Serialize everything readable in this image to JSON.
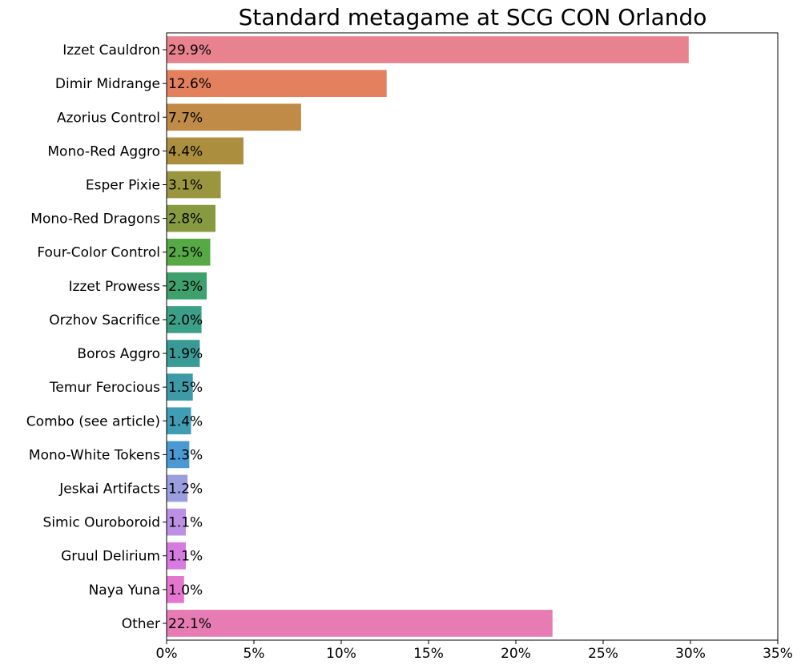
{
  "chart_data": {
    "type": "bar",
    "orientation": "horizontal",
    "title": "Standard metagame at SCG CON Orlando",
    "xlabel": "",
    "ylabel": "",
    "xlim": [
      0,
      35
    ],
    "xticks": [
      0,
      5,
      10,
      15,
      20,
      25,
      30,
      35
    ],
    "xtick_labels": [
      "0%",
      "5%",
      "10%",
      "15%",
      "20%",
      "25%",
      "30%",
      "35%"
    ],
    "grid": false,
    "legend": "none",
    "categories": [
      "Izzet Cauldron",
      "Dimir Midrange",
      "Azorius Control",
      "Mono-Red Aggro",
      "Esper Pixie",
      "Mono-Red Dragons",
      "Four-Color Control",
      "Izzet Prowess",
      "Orzhov Sacrifice",
      "Boros Aggro",
      "Temur Ferocious",
      "Combo (see article)",
      "Mono-White Tokens",
      "Jeskai Artifacts",
      "Simic Ouroboroid",
      "Gruul Delirium",
      "Naya Yuna",
      "Other"
    ],
    "values": [
      29.9,
      12.6,
      7.7,
      4.4,
      3.1,
      2.8,
      2.5,
      2.3,
      2.0,
      1.9,
      1.5,
      1.4,
      1.3,
      1.2,
      1.1,
      1.1,
      1.0,
      22.1
    ],
    "data_labels": [
      "29.9%",
      "12.6%",
      "7.7%",
      "4.4%",
      "3.1%",
      "2.8%",
      "2.5%",
      "2.3%",
      "2.0%",
      "1.9%",
      "1.5%",
      "1.4%",
      "1.3%",
      "1.2%",
      "1.1%",
      "1.1%",
      "1.0%",
      "22.1%"
    ],
    "colors": [
      "#e8828f",
      "#e3805e",
      "#c08b46",
      "#ab8e3e",
      "#9a9640",
      "#879a3f",
      "#57a945",
      "#3ea06c",
      "#3c9f88",
      "#3a9b96",
      "#3c9ba6",
      "#3f9eb3",
      "#4a99d2",
      "#9b9ede",
      "#bb90e5",
      "#d77ae2",
      "#e476cf",
      "#e67cb3"
    ]
  }
}
